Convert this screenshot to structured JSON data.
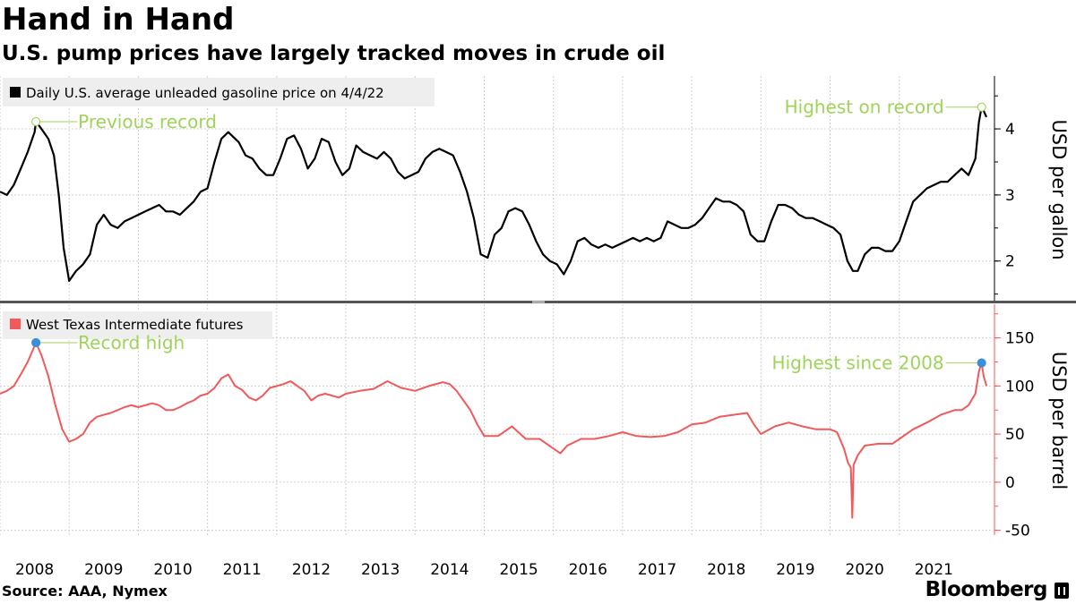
{
  "title": "Hand in Hand",
  "subtitle": "U.S. pump prices have largely tracked moves in crude oil",
  "source": "Source: AAA, Nymex",
  "brand": "Bloomberg",
  "colors": {
    "gasoline": "#000000",
    "wti": "#f05a5a",
    "annotation": "#9fd35a",
    "marker_blue": "#3a8fd8",
    "grid": "#d0d0d0",
    "divider": "#555555"
  },
  "x_axis": {
    "range": [
      2008.0,
      2022.35
    ],
    "years": [
      "2008",
      "2009",
      "2010",
      "2011",
      "2012",
      "2013",
      "2014",
      "2015",
      "2016",
      "2017",
      "2018",
      "2019",
      "2020",
      "2021"
    ]
  },
  "chart_data": [
    {
      "type": "line",
      "legend": "Daily U.S. average unleaded gasoline price on 4/4/22",
      "ylabel": "USD per gallon",
      "ylim": [
        1.4,
        4.8
      ],
      "yticks": [
        2,
        3,
        4
      ],
      "annotations": [
        {
          "label": "Previous record",
          "x": 2008.52,
          "y": 4.11
        },
        {
          "label": "Highest on record",
          "x": 2022.19,
          "y": 4.33
        }
      ],
      "series": [
        {
          "name": "Gasoline",
          "x": [
            2008.0,
            2008.1,
            2008.2,
            2008.3,
            2008.4,
            2008.5,
            2008.52,
            2008.6,
            2008.7,
            2008.78,
            2008.85,
            2008.92,
            2009.0,
            2009.1,
            2009.2,
            2009.3,
            2009.4,
            2009.5,
            2009.6,
            2009.7,
            2009.8,
            2009.9,
            2010.0,
            2010.1,
            2010.2,
            2010.3,
            2010.4,
            2010.5,
            2010.6,
            2010.7,
            2010.8,
            2010.9,
            2011.0,
            2011.1,
            2011.2,
            2011.3,
            2011.35,
            2011.45,
            2011.55,
            2011.65,
            2011.75,
            2011.85,
            2011.95,
            2012.05,
            2012.15,
            2012.25,
            2012.35,
            2012.45,
            2012.55,
            2012.65,
            2012.75,
            2012.85,
            2012.95,
            2013.05,
            2013.15,
            2013.25,
            2013.35,
            2013.45,
            2013.55,
            2013.65,
            2013.75,
            2013.85,
            2013.95,
            2014.05,
            2014.15,
            2014.25,
            2014.35,
            2014.45,
            2014.55,
            2014.65,
            2014.75,
            2014.85,
            2014.95,
            2015.05,
            2015.15,
            2015.25,
            2015.35,
            2015.45,
            2015.55,
            2015.65,
            2015.75,
            2015.85,
            2015.95,
            2016.05,
            2016.15,
            2016.25,
            2016.35,
            2016.45,
            2016.55,
            2016.65,
            2016.75,
            2016.85,
            2016.95,
            2017.05,
            2017.15,
            2017.25,
            2017.35,
            2017.45,
            2017.55,
            2017.65,
            2017.75,
            2017.85,
            2017.95,
            2018.05,
            2018.15,
            2018.25,
            2018.35,
            2018.45,
            2018.55,
            2018.65,
            2018.75,
            2018.85,
            2018.95,
            2019.05,
            2019.15,
            2019.25,
            2019.35,
            2019.45,
            2019.55,
            2019.65,
            2019.75,
            2019.85,
            2019.95,
            2020.05,
            2020.15,
            2020.25,
            2020.33,
            2020.4,
            2020.5,
            2020.6,
            2020.7,
            2020.8,
            2020.9,
            2021.0,
            2021.1,
            2021.2,
            2021.3,
            2021.4,
            2021.5,
            2021.6,
            2021.7,
            2021.8,
            2021.9,
            2022.0,
            2022.1,
            2022.15,
            2022.19,
            2022.22,
            2022.26
          ],
          "values": [
            3.05,
            3.0,
            3.15,
            3.4,
            3.65,
            3.95,
            4.11,
            4.0,
            3.85,
            3.6,
            3.0,
            2.2,
            1.7,
            1.85,
            1.95,
            2.1,
            2.55,
            2.7,
            2.55,
            2.5,
            2.6,
            2.65,
            2.7,
            2.75,
            2.8,
            2.85,
            2.75,
            2.75,
            2.7,
            2.8,
            2.9,
            3.05,
            3.1,
            3.5,
            3.85,
            3.95,
            3.9,
            3.8,
            3.6,
            3.55,
            3.4,
            3.3,
            3.3,
            3.55,
            3.85,
            3.9,
            3.7,
            3.4,
            3.55,
            3.85,
            3.8,
            3.5,
            3.3,
            3.4,
            3.75,
            3.65,
            3.6,
            3.55,
            3.65,
            3.55,
            3.35,
            3.25,
            3.3,
            3.35,
            3.55,
            3.65,
            3.7,
            3.65,
            3.6,
            3.35,
            3.05,
            2.65,
            2.1,
            2.05,
            2.4,
            2.5,
            2.75,
            2.8,
            2.75,
            2.55,
            2.3,
            2.1,
            2.0,
            1.95,
            1.8,
            2.0,
            2.3,
            2.35,
            2.25,
            2.2,
            2.25,
            2.2,
            2.25,
            2.3,
            2.35,
            2.3,
            2.35,
            2.3,
            2.35,
            2.6,
            2.55,
            2.5,
            2.5,
            2.55,
            2.65,
            2.8,
            2.95,
            2.9,
            2.9,
            2.85,
            2.75,
            2.4,
            2.3,
            2.3,
            2.6,
            2.85,
            2.85,
            2.8,
            2.7,
            2.65,
            2.65,
            2.6,
            2.55,
            2.5,
            2.4,
            2.0,
            1.85,
            1.85,
            2.1,
            2.2,
            2.2,
            2.15,
            2.15,
            2.3,
            2.6,
            2.9,
            3.0,
            3.1,
            3.15,
            3.2,
            3.2,
            3.3,
            3.4,
            3.3,
            3.55,
            4.1,
            4.33,
            4.27,
            4.18
          ]
        }
      ]
    },
    {
      "type": "line",
      "legend": "West Texas Intermediate futures",
      "ylabel": "USD per barrel",
      "ylim": [
        -55,
        185
      ],
      "yticks": [
        -50,
        0,
        50,
        100,
        150
      ],
      "annotations": [
        {
          "label": "Record high",
          "x": 2008.52,
          "y": 145
        },
        {
          "label": "Highest since 2008",
          "x": 2022.19,
          "y": 124
        }
      ],
      "series": [
        {
          "name": "WTI",
          "x": [
            2008.0,
            2008.1,
            2008.2,
            2008.3,
            2008.4,
            2008.52,
            2008.6,
            2008.7,
            2008.8,
            2008.9,
            2009.0,
            2009.1,
            2009.2,
            2009.3,
            2009.4,
            2009.5,
            2009.6,
            2009.7,
            2009.8,
            2009.9,
            2010.0,
            2010.1,
            2010.2,
            2010.3,
            2010.4,
            2010.5,
            2010.6,
            2010.7,
            2010.8,
            2010.9,
            2011.0,
            2011.1,
            2011.2,
            2011.3,
            2011.4,
            2011.5,
            2011.6,
            2011.7,
            2011.8,
            2011.9,
            2012.0,
            2012.1,
            2012.2,
            2012.3,
            2012.4,
            2012.5,
            2012.6,
            2012.7,
            2012.8,
            2012.9,
            2013.0,
            2013.2,
            2013.4,
            2013.6,
            2013.8,
            2014.0,
            2014.2,
            2014.4,
            2014.5,
            2014.6,
            2014.7,
            2014.8,
            2014.9,
            2015.0,
            2015.2,
            2015.4,
            2015.6,
            2015.8,
            2016.0,
            2016.1,
            2016.2,
            2016.4,
            2016.6,
            2016.8,
            2017.0,
            2017.2,
            2017.4,
            2017.6,
            2017.8,
            2018.0,
            2018.2,
            2018.4,
            2018.6,
            2018.8,
            2018.9,
            2019.0,
            2019.2,
            2019.4,
            2019.6,
            2019.8,
            2020.0,
            2020.1,
            2020.2,
            2020.26,
            2020.3,
            2020.32,
            2020.34,
            2020.4,
            2020.5,
            2020.7,
            2020.9,
            2021.0,
            2021.2,
            2021.4,
            2021.6,
            2021.8,
            2021.9,
            2022.0,
            2022.1,
            2022.15,
            2022.19,
            2022.22,
            2022.26
          ],
          "values": [
            92,
            95,
            100,
            112,
            125,
            145,
            132,
            110,
            80,
            55,
            42,
            45,
            50,
            62,
            68,
            70,
            72,
            75,
            78,
            80,
            78,
            80,
            82,
            80,
            75,
            75,
            78,
            82,
            85,
            90,
            92,
            98,
            108,
            112,
            100,
            96,
            88,
            85,
            90,
            98,
            100,
            102,
            105,
            100,
            95,
            85,
            90,
            92,
            90,
            88,
            92,
            95,
            97,
            105,
            98,
            95,
            100,
            104,
            102,
            95,
            85,
            75,
            60,
            48,
            48,
            58,
            45,
            45,
            35,
            30,
            38,
            45,
            45,
            48,
            52,
            48,
            47,
            48,
            52,
            60,
            62,
            68,
            70,
            72,
            60,
            50,
            58,
            62,
            58,
            55,
            55,
            52,
            35,
            20,
            15,
            -37,
            18,
            28,
            38,
            40,
            40,
            45,
            55,
            62,
            70,
            75,
            75,
            80,
            92,
            115,
            124,
            110,
            100
          ]
        }
      ]
    }
  ]
}
